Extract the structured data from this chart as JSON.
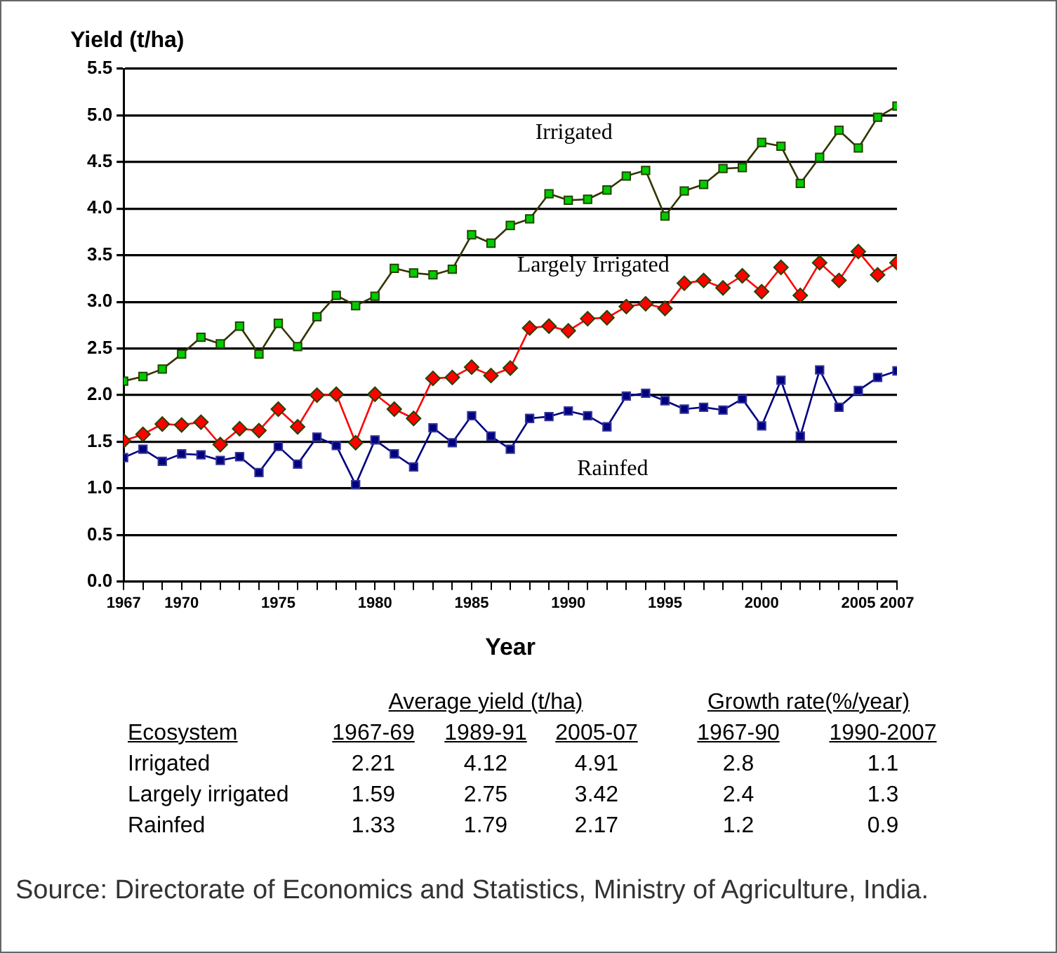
{
  "chart_data": {
    "type": "line",
    "ylabel": "Yield (t/ha)",
    "xlabel": "Year",
    "x": [
      1967,
      1968,
      1969,
      1970,
      1971,
      1972,
      1973,
      1974,
      1975,
      1976,
      1977,
      1978,
      1979,
      1980,
      1981,
      1982,
      1983,
      1984,
      1985,
      1986,
      1987,
      1988,
      1989,
      1990,
      1991,
      1992,
      1993,
      1994,
      1995,
      1996,
      1997,
      1998,
      1999,
      2000,
      2001,
      2002,
      2003,
      2004,
      2005,
      2006,
      2007
    ],
    "series": [
      {
        "name": "Irrigated",
        "color": "#00cc00",
        "marker": "square",
        "values": [
          2.15,
          2.2,
          2.28,
          2.44,
          2.62,
          2.55,
          2.74,
          2.44,
          2.77,
          2.52,
          2.84,
          3.07,
          2.96,
          3.06,
          3.36,
          3.31,
          3.29,
          3.35,
          3.72,
          3.63,
          3.82,
          3.89,
          4.16,
          4.09,
          4.1,
          4.2,
          4.35,
          4.41,
          3.92,
          4.19,
          4.26,
          4.43,
          4.44,
          4.71,
          4.67,
          4.27,
          4.55,
          4.84,
          4.65,
          4.98,
          5.1
        ]
      },
      {
        "name": "Largely Irrigated",
        "color": "#ff0000",
        "marker": "diamond",
        "values": [
          1.51,
          1.58,
          1.69,
          1.68,
          1.71,
          1.47,
          1.64,
          1.62,
          1.85,
          1.66,
          2.0,
          2.01,
          1.49,
          2.01,
          1.85,
          1.75,
          2.18,
          2.19,
          2.3,
          2.21,
          2.29,
          2.72,
          2.74,
          2.69,
          2.82,
          2.83,
          2.95,
          2.98,
          2.93,
          3.2,
          3.23,
          3.15,
          3.28,
          3.11,
          3.37,
          3.07,
          3.42,
          3.23,
          3.54,
          3.29,
          3.42
        ]
      },
      {
        "name": "Rainfed",
        "color": "#000080",
        "marker": "square",
        "values": [
          1.33,
          1.42,
          1.29,
          1.37,
          1.36,
          1.3,
          1.34,
          1.17,
          1.45,
          1.26,
          1.55,
          1.46,
          1.04,
          1.52,
          1.37,
          1.23,
          1.65,
          1.49,
          1.78,
          1.56,
          1.42,
          1.75,
          1.77,
          1.83,
          1.78,
          1.66,
          1.99,
          2.02,
          1.94,
          1.85,
          1.87,
          1.84,
          1.96,
          1.67,
          2.16,
          1.56,
          2.27,
          1.87,
          2.05,
          2.19,
          2.26
        ]
      }
    ],
    "xlim": [
      1967,
      2007
    ],
    "xticks": [
      1967,
      {
        "value": 1968,
        "label": null
      },
      {
        "value": 1969,
        "label": null
      },
      1970,
      {
        "value": 1971,
        "label": null
      },
      {
        "value": 1972,
        "label": null
      },
      {
        "value": 1973,
        "label": null
      },
      {
        "value": 1974,
        "label": null
      },
      1975,
      {
        "value": 1976,
        "label": null
      },
      {
        "value": 1977,
        "label": null
      },
      {
        "value": 1978,
        "label": null
      },
      {
        "value": 1979,
        "label": null
      },
      1980,
      {
        "value": 1981,
        "label": null
      },
      {
        "value": 1982,
        "label": null
      },
      {
        "value": 1983,
        "label": null
      },
      {
        "value": 1984,
        "label": null
      },
      1985,
      {
        "value": 1986,
        "label": null
      },
      {
        "value": 1987,
        "label": null
      },
      {
        "value": 1988,
        "label": null
      },
      {
        "value": 1989,
        "label": null
      },
      1990,
      {
        "value": 1991,
        "label": null
      },
      {
        "value": 1992,
        "label": null
      },
      {
        "value": 1993,
        "label": null
      },
      {
        "value": 1994,
        "label": null
      },
      1995,
      {
        "value": 1996,
        "label": null
      },
      {
        "value": 1997,
        "label": null
      },
      {
        "value": 1998,
        "label": null
      },
      {
        "value": 1999,
        "label": null
      },
      2000,
      {
        "value": 2001,
        "label": null
      },
      {
        "value": 2002,
        "label": null
      },
      {
        "value": 2003,
        "label": null
      },
      {
        "value": 2004,
        "label": null
      },
      2005,
      {
        "value": 2006,
        "label": null
      },
      2007
    ],
    "ylim": [
      0,
      5.5
    ],
    "yticks": [
      {
        "value": 0,
        "label": "0.0"
      },
      0.5,
      {
        "value": 1,
        "label": "1.0"
      },
      1.5,
      {
        "value": 2,
        "label": "2.0"
      },
      2.5,
      {
        "value": 3,
        "label": "3.0"
      },
      3.5,
      {
        "value": 4,
        "label": "4.0"
      },
      4.5,
      {
        "value": 5,
        "label": "5.0"
      },
      5.5
    ],
    "grid": "y",
    "legend": false,
    "annotations": [
      "Average yield (t/ha)",
      "Growth rate(%/year)",
      "Ecosystem",
      "1967-69",
      "1989-91",
      "2005-07",
      "1967-90",
      "1990-2007",
      "Irrigated",
      "2.21",
      "4.12",
      "4.91",
      "2.8",
      "1.1",
      "Largely irrigated",
      "1.59",
      "2.75",
      "3.42",
      "2.4",
      "1.3",
      "Rainfed",
      "1.33",
      "1.79",
      "2.17",
      "1.2",
      "0.9",
      "Source: Directorate of Economics and Statistics, Ministry of Agriculture, India."
    ]
  }
}
